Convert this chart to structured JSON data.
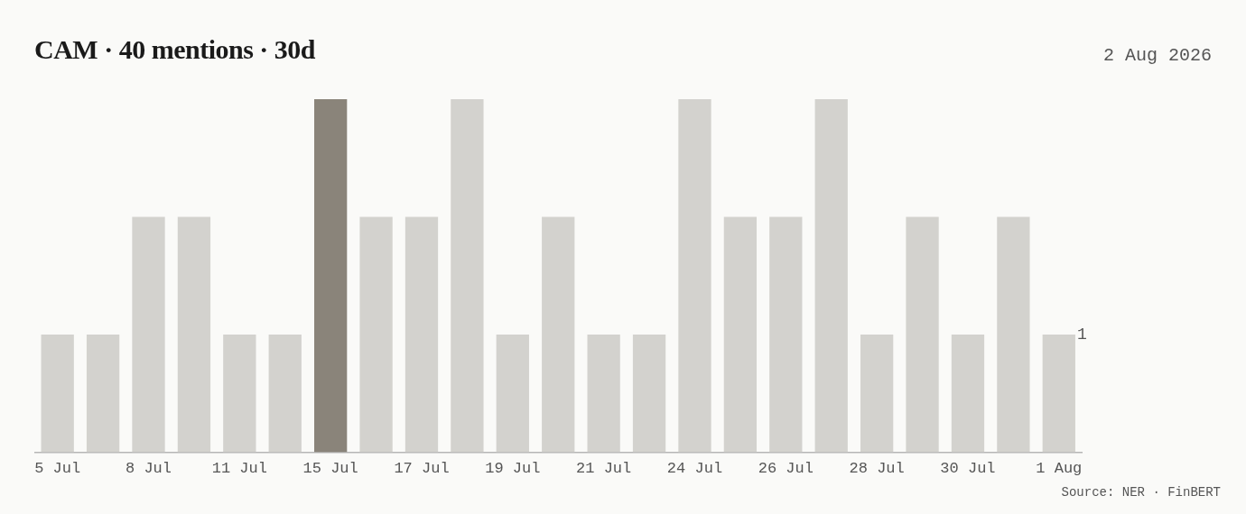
{
  "chart_data": {
    "type": "bar",
    "title": "CAM · 40 mentions · 30d",
    "subtitle": "2 Aug 2026",
    "categories": [
      "5 Jul",
      null,
      "8 Jul",
      null,
      "11 Jul",
      null,
      "15 Jul",
      null,
      "17 Jul",
      null,
      "19 Jul",
      null,
      "21 Jul",
      null,
      "24 Jul",
      null,
      "26 Jul",
      null,
      "28 Jul",
      null,
      "30 Jul",
      null,
      "1 Aug"
    ],
    "values": [
      1,
      1,
      2,
      2,
      1,
      1,
      3,
      2,
      2,
      3,
      1,
      2,
      1,
      1,
      3,
      2,
      2,
      3,
      1,
      2,
      1,
      2,
      1
    ],
    "colors": [
      "#d3d2ce",
      "#d3d2ce",
      "#d3d2ce",
      "#d3d2ce",
      "#d3d2ce",
      "#d3d2ce",
      "#8a847a",
      "#d3d2ce",
      "#d3d2ce",
      "#d3d2ce",
      "#d3d2ce",
      "#d3d2ce",
      "#d3d2ce",
      "#d3d2ce",
      "#d3d2ce",
      "#d3d2ce",
      "#d3d2ce",
      "#d3d2ce",
      "#d3d2ce",
      "#d3d2ce",
      "#d3d2ce",
      "#d3d2ce",
      "#d3d2ce"
    ],
    "value_labels": [
      null,
      null,
      null,
      null,
      null,
      null,
      null,
      null,
      null,
      null,
      null,
      null,
      null,
      null,
      null,
      null,
      null,
      null,
      null,
      null,
      null,
      null,
      "1"
    ],
    "ylim": [
      0,
      3
    ],
    "grid": false,
    "legend": false,
    "annotations": [
      "Source: NER · FinBERT"
    ]
  }
}
